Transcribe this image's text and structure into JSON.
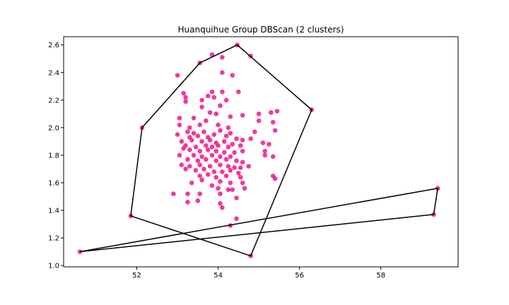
{
  "chart_data": {
    "type": "scatter",
    "title": "Huanquihue Group DBScan (2 clusters)",
    "xlabel": "",
    "ylabel": "",
    "xlim": [
      50.2,
      59.9
    ],
    "ylim": [
      0.99,
      2.66
    ],
    "xticks": [
      52,
      54,
      56,
      58
    ],
    "yticks": [
      1.0,
      1.2,
      1.4,
      1.6,
      1.8,
      2.0,
      2.2,
      2.4,
      2.6
    ],
    "grid": false,
    "point_color": "#f0168c",
    "hull_color": "#000000",
    "hulls": [
      [
        [
          51.85,
          1.36
        ],
        [
          52.13,
          2.0
        ],
        [
          53.55,
          2.47
        ],
        [
          54.47,
          2.6
        ],
        [
          56.3,
          2.13
        ],
        [
          54.8,
          1.07
        ],
        [
          51.85,
          1.36
        ]
      ],
      [
        [
          50.6,
          1.1
        ],
        [
          59.4,
          1.56
        ],
        [
          59.3,
          1.37
        ],
        [
          50.6,
          1.1
        ]
      ]
    ],
    "points": [
      [
        54.47,
        2.6
      ],
      [
        54.8,
        2.52
      ],
      [
        53.55,
        2.47
      ],
      [
        53.85,
        2.53
      ],
      [
        54.1,
        2.51
      ],
      [
        53.0,
        2.38
      ],
      [
        54.1,
        2.4
      ],
      [
        54.35,
        2.38
      ],
      [
        53.15,
        2.25
      ],
      [
        53.2,
        2.22
      ],
      [
        53.85,
        2.26
      ],
      [
        54.1,
        2.26
      ],
      [
        54.5,
        2.26
      ],
      [
        53.75,
        2.23
      ],
      [
        53.9,
        2.22
      ],
      [
        53.2,
        2.19
      ],
      [
        53.6,
        2.2
      ],
      [
        54.2,
        2.2
      ],
      [
        53.6,
        2.15
      ],
      [
        54.05,
        2.16
      ],
      [
        56.3,
        2.13
      ],
      [
        53.8,
        2.11
      ],
      [
        53.95,
        2.1
      ],
      [
        54.6,
        2.09
      ],
      [
        55.0,
        2.1
      ],
      [
        55.3,
        2.11
      ],
      [
        55.45,
        2.12
      ],
      [
        53.05,
        2.07
      ],
      [
        53.4,
        2.07
      ],
      [
        54.3,
        2.08
      ],
      [
        55.0,
        2.05
      ],
      [
        55.35,
        2.04
      ],
      [
        53.7,
        2.05
      ],
      [
        52.13,
        2.0
      ],
      [
        53.05,
        2.02
      ],
      [
        53.3,
        2.0
      ],
      [
        53.55,
        2.02
      ],
      [
        54.0,
        2.02
      ],
      [
        54.25,
        2.0
      ],
      [
        55.4,
        1.98
      ],
      [
        53.0,
        1.95
      ],
      [
        53.25,
        1.97
      ],
      [
        53.4,
        1.96
      ],
      [
        53.65,
        1.97
      ],
      [
        53.9,
        1.95
      ],
      [
        54.05,
        1.98
      ],
      [
        54.3,
        1.96
      ],
      [
        54.9,
        1.97
      ],
      [
        53.3,
        1.93
      ],
      [
        53.5,
        1.94
      ],
      [
        53.75,
        1.93
      ],
      [
        54.2,
        1.94
      ],
      [
        54.45,
        1.92
      ],
      [
        54.6,
        1.91
      ],
      [
        54.8,
        1.92
      ],
      [
        53.1,
        1.9
      ],
      [
        53.35,
        1.91
      ],
      [
        53.6,
        1.9
      ],
      [
        53.8,
        1.91
      ],
      [
        53.95,
        1.89
      ],
      [
        54.15,
        1.9
      ],
      [
        54.35,
        1.88
      ],
      [
        53.2,
        1.87
      ],
      [
        53.45,
        1.86
      ],
      [
        53.7,
        1.87
      ],
      [
        53.85,
        1.86
      ],
      [
        54.0,
        1.87
      ],
      [
        54.25,
        1.86
      ],
      [
        54.55,
        1.87
      ],
      [
        55.1,
        1.89
      ],
      [
        55.25,
        1.88
      ],
      [
        53.15,
        1.85
      ],
      [
        53.3,
        1.84
      ],
      [
        53.55,
        1.83
      ],
      [
        53.75,
        1.84
      ],
      [
        53.95,
        1.83
      ],
      [
        54.15,
        1.82
      ],
      [
        54.4,
        1.82
      ],
      [
        54.6,
        1.83
      ],
      [
        55.15,
        1.83
      ],
      [
        53.05,
        1.8
      ],
      [
        53.4,
        1.8
      ],
      [
        53.6,
        1.79
      ],
      [
        53.85,
        1.8
      ],
      [
        54.05,
        1.79
      ],
      [
        54.3,
        1.79
      ],
      [
        55.15,
        1.8
      ],
      [
        55.35,
        1.79
      ],
      [
        53.25,
        1.77
      ],
      [
        53.5,
        1.76
      ],
      [
        53.7,
        1.77
      ],
      [
        53.95,
        1.76
      ],
      [
        54.2,
        1.77
      ],
      [
        54.45,
        1.76
      ],
      [
        54.6,
        1.75
      ],
      [
        53.1,
        1.73
      ],
      [
        53.3,
        1.72
      ],
      [
        53.55,
        1.73
      ],
      [
        53.8,
        1.72
      ],
      [
        54.05,
        1.73
      ],
      [
        54.25,
        1.72
      ],
      [
        54.4,
        1.71
      ],
      [
        54.55,
        1.71
      ],
      [
        54.75,
        1.72
      ],
      [
        53.2,
        1.7
      ],
      [
        53.45,
        1.69
      ],
      [
        53.65,
        1.7
      ],
      [
        53.9,
        1.68
      ],
      [
        54.1,
        1.68
      ],
      [
        54.3,
        1.69
      ],
      [
        54.5,
        1.67
      ],
      [
        53.55,
        1.65
      ],
      [
        53.75,
        1.66
      ],
      [
        53.95,
        1.64
      ],
      [
        54.2,
        1.65
      ],
      [
        54.55,
        1.64
      ],
      [
        55.35,
        1.65
      ],
      [
        55.4,
        1.63
      ],
      [
        53.35,
        1.6
      ],
      [
        53.6,
        1.62
      ],
      [
        54.05,
        1.61
      ],
      [
        54.3,
        1.6
      ],
      [
        54.6,
        1.6
      ],
      [
        53.85,
        1.58
      ],
      [
        54.0,
        1.56
      ],
      [
        54.25,
        1.55
      ],
      [
        54.35,
        1.55
      ],
      [
        54.65,
        1.56
      ],
      [
        52.9,
        1.52
      ],
      [
        53.25,
        1.52
      ],
      [
        53.55,
        1.52
      ],
      [
        54.05,
        1.52
      ],
      [
        54.45,
        1.49
      ],
      [
        53.25,
        1.46
      ],
      [
        53.5,
        1.47
      ],
      [
        54.05,
        1.45
      ],
      [
        54.1,
        1.42
      ],
      [
        51.85,
        1.36
      ],
      [
        54.45,
        1.34
      ],
      [
        54.3,
        1.29
      ],
      [
        54.8,
        1.07
      ],
      [
        50.6,
        1.1
      ],
      [
        59.4,
        1.56
      ],
      [
        59.3,
        1.37
      ]
    ]
  }
}
